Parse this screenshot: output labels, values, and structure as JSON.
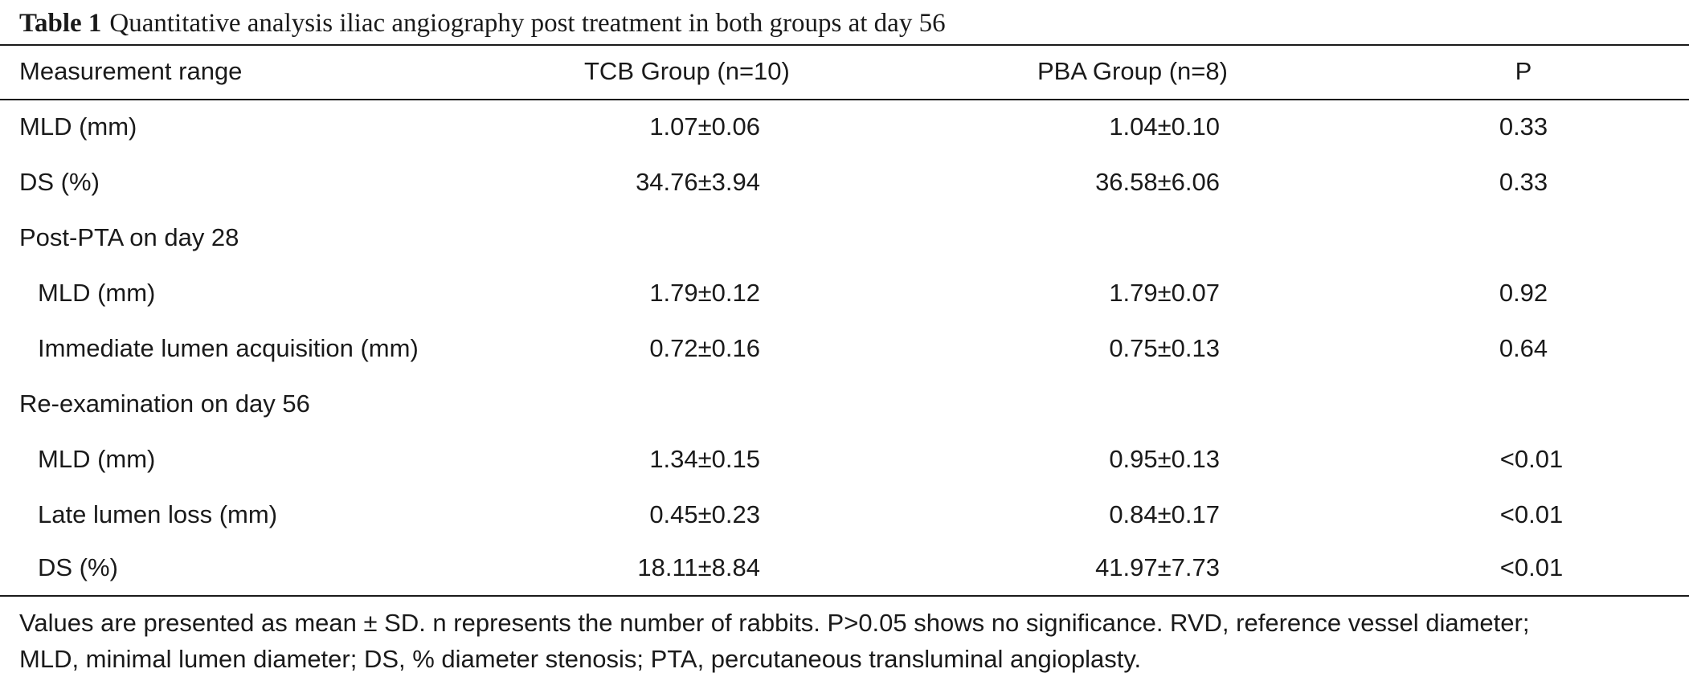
{
  "caption": {
    "label": "Table 1",
    "text": "Quantitative analysis iliac angiography post treatment in both groups at day 56"
  },
  "header": {
    "measurement": "Measurement range",
    "tcb": "TCB Group (n=10)",
    "pba": "PBA Group (n=8)",
    "p": "P"
  },
  "rows": [
    {
      "label": "MLD (mm)",
      "tcb": "1.07±0.06",
      "pba": "1.04±0.10",
      "p": "0.33"
    },
    {
      "label": "DS (%)",
      "tcb": "34.76±3.94",
      "pba": "36.58±6.06",
      "p": "0.33"
    },
    {
      "label": "Post-PTA on day 28",
      "tcb": "",
      "pba": "",
      "p": ""
    },
    {
      "label": "MLD (mm)",
      "tcb": "1.79±0.12",
      "pba": "1.79±0.07",
      "p": "0.92"
    },
    {
      "label": "Immediate lumen acquisition (mm)",
      "tcb": "0.72±0.16",
      "pba": "0.75±0.13",
      "p": "0.64"
    },
    {
      "label": "Re-examination on day 56",
      "tcb": "",
      "pba": "",
      "p": ""
    },
    {
      "label": "MLD (mm)",
      "tcb": "1.34±0.15",
      "pba": "0.95±0.13",
      "p": "<0.01"
    },
    {
      "label": "Late lumen loss (mm)",
      "tcb": "0.45±0.23",
      "pba": "0.84±0.17",
      "p": "<0.01"
    },
    {
      "label": "DS (%)",
      "tcb": "18.11±8.84",
      "pba": "41.97±7.73",
      "p": "<0.01"
    }
  ],
  "footnote": {
    "line1": "Values are presented as mean ± SD. n represents the number of rabbits. P>0.05 shows no significance. RVD, reference vessel diameter;",
    "line2": "MLD, minimal lumen diameter; DS, % diameter stenosis; PTA, percutaneous transluminal angioplasty."
  }
}
